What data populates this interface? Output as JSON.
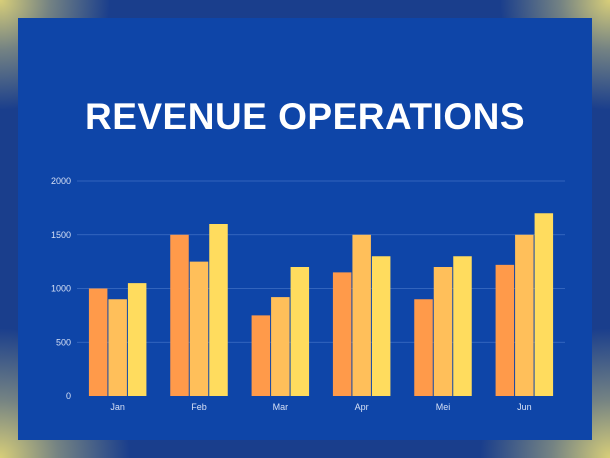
{
  "title": "REVENUE OPERATIONS",
  "colors": {
    "background": "#0e45a8",
    "gridline": "#3f6fc4",
    "series": [
      "#ff9a4a",
      "#ffbf5a",
      "#ffdc5e"
    ]
  },
  "chart_data": {
    "type": "bar",
    "title": "REVENUE OPERATIONS",
    "categories": [
      "Jan",
      "Feb",
      "Mar",
      "Apr",
      "Mei",
      "Jun"
    ],
    "series": [
      {
        "values": [
          1000,
          1500,
          750,
          1150,
          900,
          1220
        ]
      },
      {
        "values": [
          900,
          1250,
          920,
          1500,
          1200,
          1500
        ]
      },
      {
        "values": [
          1050,
          1600,
          1200,
          1300,
          1300,
          1700
        ]
      }
    ],
    "ylim": [
      0,
      2000
    ],
    "yticks": [
      "0",
      "500",
      "1000",
      "1500",
      "2000"
    ],
    "grid": true,
    "xlabel": "",
    "ylabel": ""
  }
}
